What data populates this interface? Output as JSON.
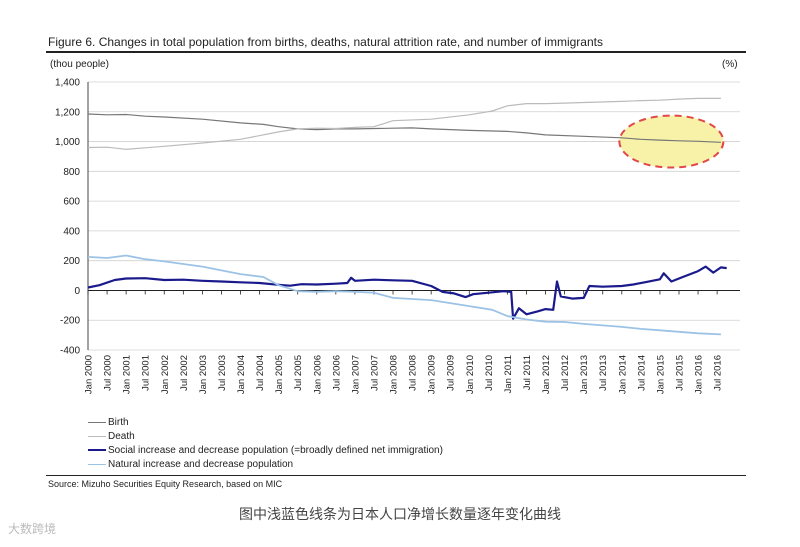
{
  "figure_title": "Figure 6. Changes in total population from births, deaths, natural attrition rate, and number of immigrants",
  "unit_left": "(thou people)",
  "unit_right": "(%)",
  "source": "Source: Mizuho Securities Equity Research, based on MIC",
  "caption": "图中浅蓝色线条为日本人口净增长数量逐年变化曲线",
  "watermark": "大数跨境",
  "colors": {
    "birth": "#777777",
    "death": "#bbbbbb",
    "social": "#1a1a8c",
    "natural": "#9cc3e6",
    "highlight_fill": "#f8f2a8",
    "highlight_stroke": "#e04848"
  },
  "chart_data": {
    "type": "line",
    "ylim": [
      -400,
      1400
    ],
    "yticks": [
      -400,
      -200,
      0,
      200,
      400,
      600,
      800,
      1000,
      1200,
      1400
    ],
    "ytick_labels": [
      "-400",
      "-200",
      "0",
      "200",
      "400",
      "600",
      "800",
      "1,000",
      "1,200",
      "1,400"
    ],
    "xlim": [
      2000.0,
      2017.1
    ],
    "xtick_labels": [
      "Jan 2000",
      "Jul 2000",
      "Jan 2001",
      "Jul 2001",
      "Jan 2002",
      "Jul 2002",
      "Jan 2003",
      "Jul 2003",
      "Jan 2004",
      "Jul 2004",
      "Jan 2005",
      "Jul 2005",
      "Jan 2006",
      "Jul 2006",
      "Jan 2007",
      "Jul 2007",
      "Jan 2008",
      "Jul 2008",
      "Jan 2009",
      "Jul 2009",
      "Jan 2010",
      "Jul 2010",
      "Jan 2011",
      "Jul 2011",
      "Jan 2012",
      "Jul 2012",
      "Jan 2013",
      "Jul 2013",
      "Jan 2014",
      "Jul 2014",
      "Jan 2015",
      "Jul 2015",
      "Jan 2016",
      "Jul 2016"
    ],
    "grid": true,
    "legend_position": "bottom-left",
    "highlight": {
      "x": 2015.3,
      "y": 1000
    },
    "series": [
      {
        "name": "Birth",
        "key": "birth",
        "width": 1.2,
        "points": [
          [
            2000.0,
            1185
          ],
          [
            2000.5,
            1180
          ],
          [
            2001.0,
            1182
          ],
          [
            2001.5,
            1170
          ],
          [
            2002.0,
            1165
          ],
          [
            2003.0,
            1150
          ],
          [
            2004.0,
            1125
          ],
          [
            2004.6,
            1115
          ],
          [
            2005.0,
            1100
          ],
          [
            2005.5,
            1085
          ],
          [
            2006.0,
            1080
          ],
          [
            2006.5,
            1085
          ],
          [
            2007.0,
            1085
          ],
          [
            2008.0,
            1090
          ],
          [
            2008.5,
            1092
          ],
          [
            2009.0,
            1085
          ],
          [
            2010.0,
            1075
          ],
          [
            2011.0,
            1068
          ],
          [
            2011.5,
            1058
          ],
          [
            2012.0,
            1045
          ],
          [
            2013.0,
            1035
          ],
          [
            2014.0,
            1025
          ],
          [
            2014.5,
            1015
          ],
          [
            2015.0,
            1010
          ],
          [
            2015.5,
            1005
          ],
          [
            2016.0,
            1002
          ],
          [
            2016.6,
            995
          ]
        ]
      },
      {
        "name": "Death",
        "key": "death",
        "width": 1.2,
        "points": [
          [
            2000.0,
            960
          ],
          [
            2000.5,
            962
          ],
          [
            2001.0,
            948
          ],
          [
            2001.5,
            958
          ],
          [
            2002.0,
            968
          ],
          [
            2003.0,
            990
          ],
          [
            2004.0,
            1015
          ],
          [
            2005.0,
            1065
          ],
          [
            2005.5,
            1085
          ],
          [
            2006.0,
            1090
          ],
          [
            2006.5,
            1088
          ],
          [
            2007.0,
            1095
          ],
          [
            2007.5,
            1100
          ],
          [
            2008.0,
            1140
          ],
          [
            2009.0,
            1150
          ],
          [
            2010.0,
            1180
          ],
          [
            2010.6,
            1205
          ],
          [
            2011.0,
            1240
          ],
          [
            2011.5,
            1255
          ],
          [
            2012.0,
            1255
          ],
          [
            2012.5,
            1258
          ],
          [
            2013.0,
            1262
          ],
          [
            2014.0,
            1270
          ],
          [
            2014.5,
            1275
          ],
          [
            2015.0,
            1278
          ],
          [
            2015.5,
            1285
          ],
          [
            2016.0,
            1290
          ],
          [
            2016.6,
            1290
          ]
        ]
      },
      {
        "name": "Social increase and decrease population (=broadly defined net immigration)",
        "key": "social",
        "width": 2.2,
        "points": [
          [
            2000.0,
            20
          ],
          [
            2000.3,
            35
          ],
          [
            2000.7,
            70
          ],
          [
            2001.0,
            80
          ],
          [
            2001.5,
            82
          ],
          [
            2002.0,
            70
          ],
          [
            2002.5,
            72
          ],
          [
            2003.0,
            65
          ],
          [
            2003.5,
            60
          ],
          [
            2004.0,
            55
          ],
          [
            2004.5,
            50
          ],
          [
            2005.0,
            38
          ],
          [
            2005.3,
            32
          ],
          [
            2005.6,
            42
          ],
          [
            2006.0,
            40
          ],
          [
            2006.5,
            45
          ],
          [
            2006.8,
            50
          ],
          [
            2006.9,
            85
          ],
          [
            2007.0,
            65
          ],
          [
            2007.5,
            72
          ],
          [
            2008.0,
            68
          ],
          [
            2008.5,
            65
          ],
          [
            2009.0,
            30
          ],
          [
            2009.3,
            -10
          ],
          [
            2009.6,
            -20
          ],
          [
            2009.9,
            -45
          ],
          [
            2010.1,
            -25
          ],
          [
            2010.5,
            -15
          ],
          [
            2010.9,
            -5
          ],
          [
            2011.1,
            -10
          ],
          [
            2011.15,
            -190
          ],
          [
            2011.3,
            -120
          ],
          [
            2011.5,
            -160
          ],
          [
            2011.8,
            -140
          ],
          [
            2012.0,
            -125
          ],
          [
            2012.2,
            -130
          ],
          [
            2012.3,
            60
          ],
          [
            2012.4,
            -40
          ],
          [
            2012.7,
            -55
          ],
          [
            2013.0,
            -50
          ],
          [
            2013.15,
            30
          ],
          [
            2013.5,
            25
          ],
          [
            2014.0,
            30
          ],
          [
            2014.3,
            40
          ],
          [
            2014.6,
            55
          ],
          [
            2015.0,
            75
          ],
          [
            2015.1,
            115
          ],
          [
            2015.3,
            60
          ],
          [
            2015.6,
            90
          ],
          [
            2016.0,
            130
          ],
          [
            2016.2,
            160
          ],
          [
            2016.4,
            120
          ],
          [
            2016.6,
            155
          ],
          [
            2016.75,
            150
          ]
        ]
      },
      {
        "name": "Natural increase and decrease population",
        "key": "natural",
        "width": 1.8,
        "points": [
          [
            2000.0,
            225
          ],
          [
            2000.5,
            218
          ],
          [
            2001.0,
            235
          ],
          [
            2001.5,
            210
          ],
          [
            2002.0,
            195
          ],
          [
            2003.0,
            160
          ],
          [
            2004.0,
            110
          ],
          [
            2004.6,
            90
          ],
          [
            2005.0,
            35
          ],
          [
            2005.5,
            -5
          ],
          [
            2006.0,
            -10
          ],
          [
            2006.5,
            -5
          ],
          [
            2007.0,
            -10
          ],
          [
            2007.5,
            -15
          ],
          [
            2008.0,
            -50
          ],
          [
            2009.0,
            -65
          ],
          [
            2010.0,
            -105
          ],
          [
            2010.6,
            -130
          ],
          [
            2011.0,
            -172
          ],
          [
            2011.5,
            -195
          ],
          [
            2012.0,
            -210
          ],
          [
            2012.5,
            -212
          ],
          [
            2013.0,
            -225
          ],
          [
            2014.0,
            -245
          ],
          [
            2014.5,
            -258
          ],
          [
            2015.0,
            -268
          ],
          [
            2015.5,
            -278
          ],
          [
            2016.0,
            -288
          ],
          [
            2016.6,
            -295
          ]
        ]
      }
    ]
  }
}
